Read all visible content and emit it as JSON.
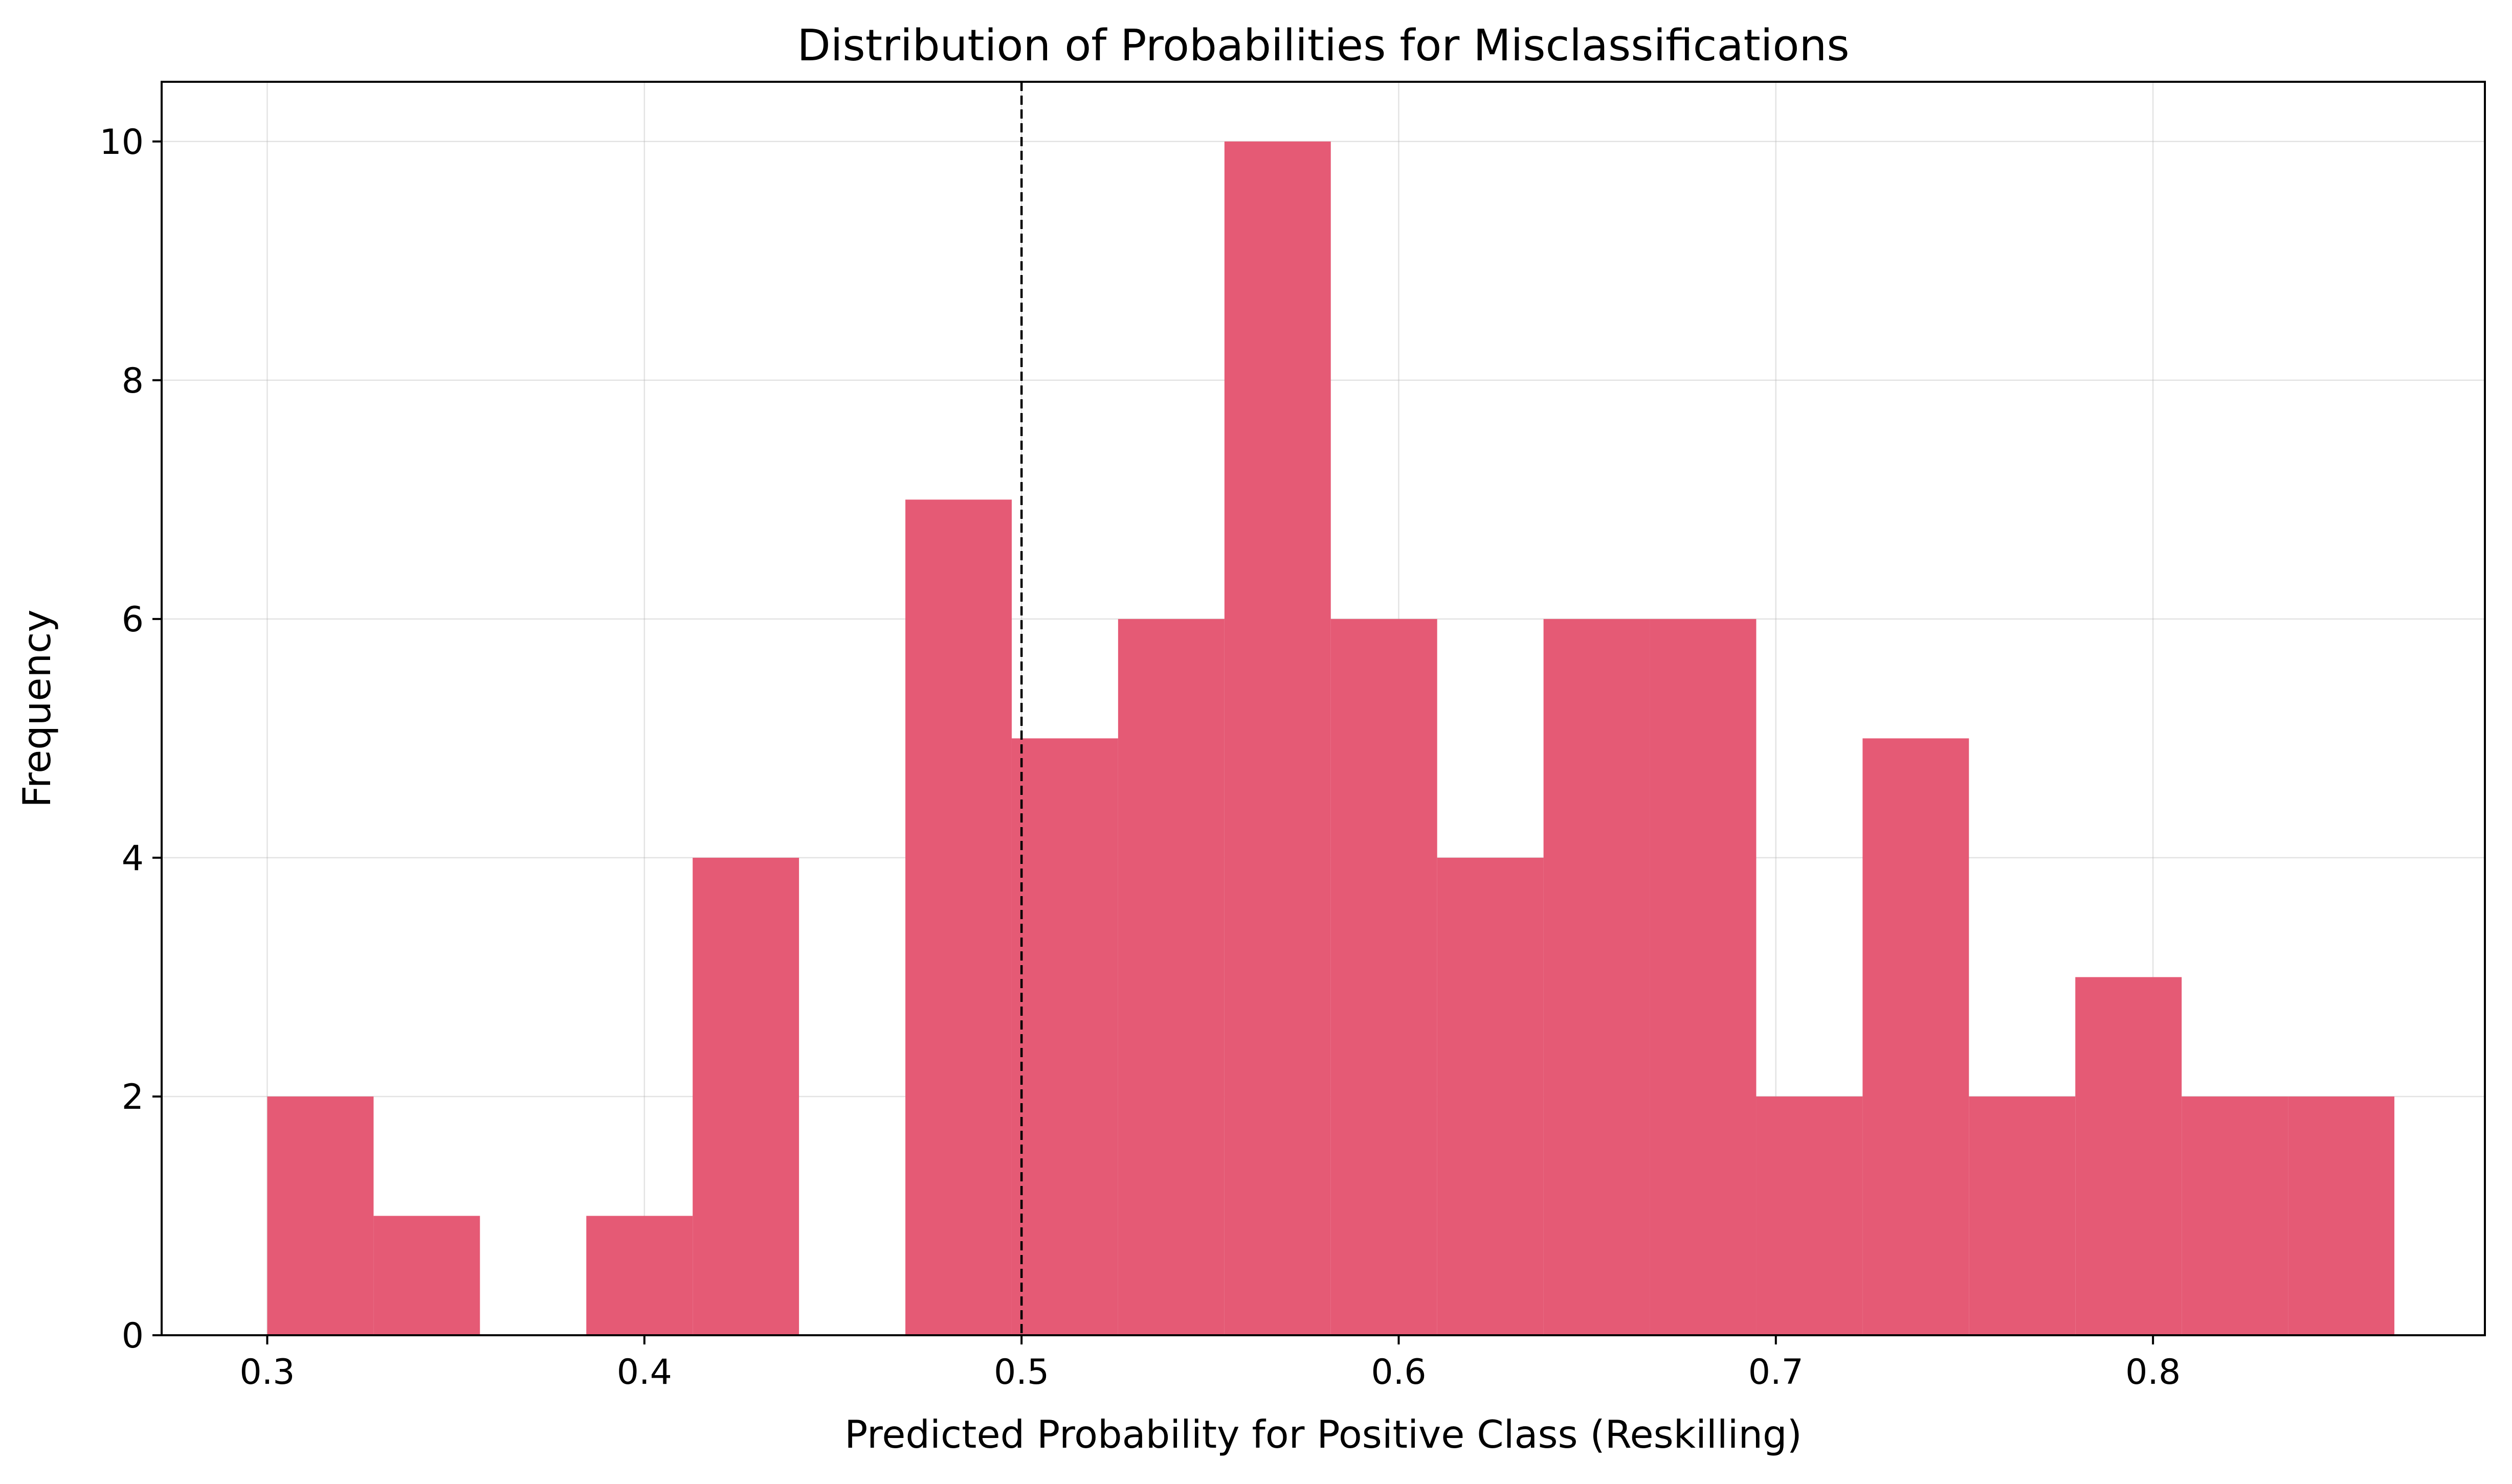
{
  "chart_data": {
    "type": "bar",
    "title": "Distribution of Probabilities for Misclassifications",
    "xlabel": "Predicted Probability for Positive Class (Reskilling)",
    "ylabel": "Frequency",
    "xlim": [
      0.272,
      0.888
    ],
    "ylim": [
      0,
      10.5
    ],
    "x_ticks": [
      0.3,
      0.4,
      0.5,
      0.6,
      0.7,
      0.8
    ],
    "x_tick_labels": [
      "0.3",
      "0.4",
      "0.5",
      "0.6",
      "0.7",
      "0.8"
    ],
    "y_ticks": [
      0,
      2,
      4,
      6,
      8,
      10
    ],
    "y_tick_labels": [
      "0",
      "2",
      "4",
      "6",
      "8",
      "10"
    ],
    "grid": true,
    "bar_color": "#e55a75",
    "bin_edges": [
      0.3,
      0.3282,
      0.3564,
      0.3846,
      0.4128,
      0.441,
      0.4692,
      0.4974,
      0.5256,
      0.5538,
      0.582,
      0.6102,
      0.6384,
      0.6666,
      0.6948,
      0.723,
      0.7512,
      0.7794,
      0.8076,
      0.8358,
      0.864
    ],
    "values": [
      2,
      1,
      0,
      1,
      4,
      0,
      7,
      5,
      6,
      10,
      6,
      4,
      6,
      6,
      2,
      5,
      2,
      3,
      2,
      2
    ],
    "threshold": {
      "x": 0.5,
      "style": "dashed",
      "color": "#000000"
    }
  }
}
